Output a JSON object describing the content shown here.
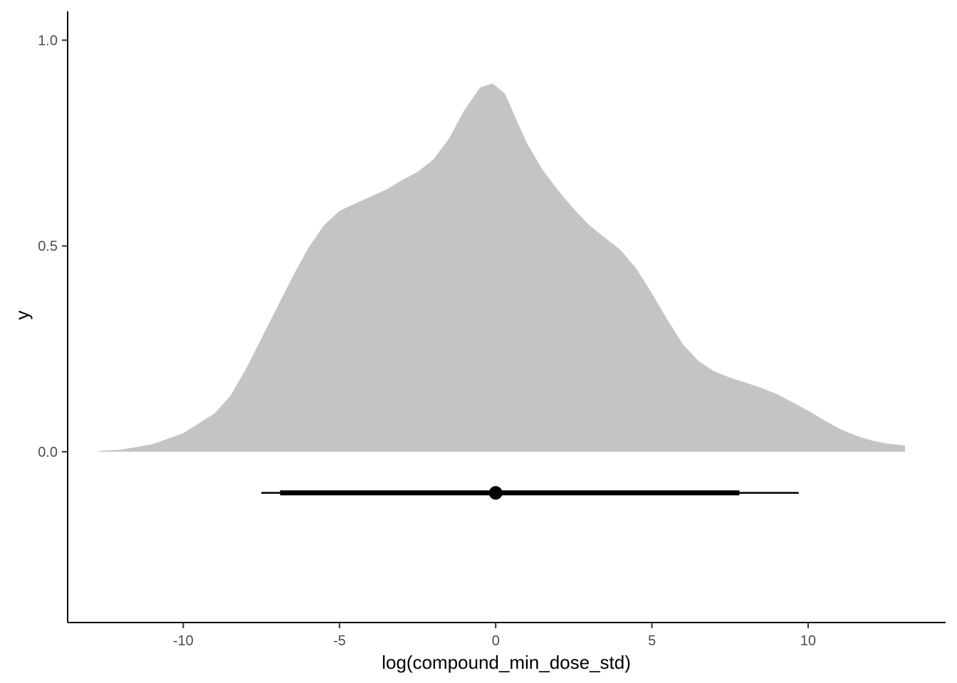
{
  "chart_data": {
    "type": "area",
    "xlabel": "log(compound_min_dose_std)",
    "ylabel": "y",
    "xlim": [
      -13.7,
      14.4
    ],
    "ylim": [
      -0.415,
      1.07
    ],
    "x_ticks": [
      -10,
      -5,
      0,
      5,
      10
    ],
    "x_tick_labels": [
      "-10",
      "-5",
      "0",
      "5",
      "10"
    ],
    "y_ticks": [
      0.0,
      0.5,
      1.0
    ],
    "y_tick_labels": [
      "0.0",
      "0.5",
      "1.0"
    ],
    "grid": false,
    "legend": "none",
    "density": {
      "color": "#c4c4c4",
      "x": [
        -12.7,
        -12.0,
        -11.0,
        -10.0,
        -9.0,
        -8.5,
        -8.0,
        -7.5,
        -7.0,
        -6.5,
        -6.0,
        -5.5,
        -5.0,
        -4.5,
        -4.0,
        -3.5,
        -3.0,
        -2.5,
        -2.0,
        -1.5,
        -1.0,
        -0.5,
        -0.1,
        0.3,
        0.7,
        1.0,
        1.5,
        2.0,
        2.5,
        3.0,
        3.5,
        4.0,
        4.5,
        5.0,
        5.5,
        6.0,
        6.5,
        7.0,
        7.5,
        8.0,
        8.5,
        9.0,
        9.5,
        10.0,
        10.5,
        11.0,
        11.5,
        12.0,
        12.5,
        13.1
      ],
      "y": [
        0.002,
        0.005,
        0.018,
        0.045,
        0.093,
        0.135,
        0.2,
        0.275,
        0.35,
        0.425,
        0.495,
        0.55,
        0.585,
        0.603,
        0.62,
        0.637,
        0.66,
        0.68,
        0.71,
        0.76,
        0.83,
        0.885,
        0.895,
        0.87,
        0.8,
        0.75,
        0.685,
        0.635,
        0.59,
        0.55,
        0.52,
        0.49,
        0.445,
        0.385,
        0.32,
        0.26,
        0.22,
        0.195,
        0.18,
        0.168,
        0.155,
        0.14,
        0.12,
        0.1,
        0.077,
        0.056,
        0.04,
        0.028,
        0.02,
        0.015
      ]
    },
    "interval": {
      "y": -0.1,
      "point": 0.0,
      "inner": [
        -6.9,
        7.8
      ],
      "outer": [
        -7.5,
        9.7
      ],
      "color": "#000000"
    }
  }
}
